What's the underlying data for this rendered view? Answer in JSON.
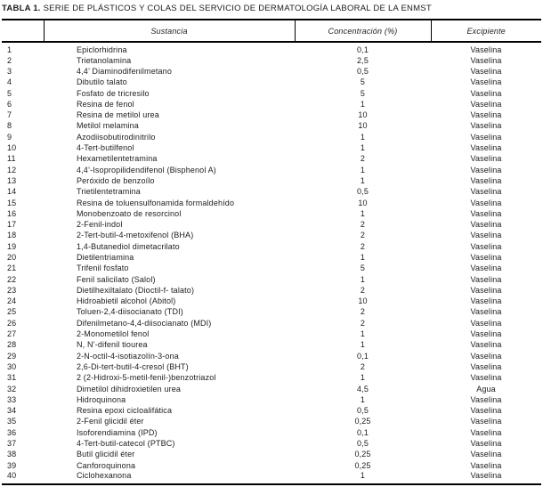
{
  "title": {
    "prefix": "TABLA 1.",
    "rest": " SERIE DE PLÁSTICOS Y COLAS DEL SERVICIO DE DERMATOLOGÍA LABORAL DE LA ENMST"
  },
  "table": {
    "columns": [
      "",
      "Sustancia",
      "Concentración (%)",
      "Excipiente"
    ],
    "rows": [
      [
        "1",
        "Epiclorhidrina",
        "0,1",
        "Vaselina"
      ],
      [
        "2",
        "Trietanolamina",
        "2,5",
        "Vaselina"
      ],
      [
        "3",
        "4,4’ Diaminodifenilmetano",
        "0,5",
        "Vaselina"
      ],
      [
        "4",
        "Dibutilo talato",
        "5",
        "Vaselina"
      ],
      [
        "5",
        "Fosfato de tricresilo",
        "5",
        "Vaselina"
      ],
      [
        "6",
        "Resina de fenol",
        "1",
        "Vaselina"
      ],
      [
        "7",
        "Resina de metilol urea",
        "10",
        "Vaselina"
      ],
      [
        "8",
        "Metilol melamina",
        "10",
        "Vaselina"
      ],
      [
        "9",
        "Azodiisobutirodinitrilo",
        "1",
        "Vaselina"
      ],
      [
        "10",
        "4-Tert-butilfenol",
        "1",
        "Vaselina"
      ],
      [
        "11",
        "Hexametilentetramina",
        "2",
        "Vaselina"
      ],
      [
        "12",
        "4,4’-Isopropilidendifenol (Bisphenol A)",
        "1",
        "Vaselina"
      ],
      [
        "13",
        "Peróxido de benzoílo",
        "1",
        "Vaselina"
      ],
      [
        "14",
        "Trietilentetramina",
        "0,5",
        "Vaselina"
      ],
      [
        "15",
        "Resina de toluensulfonamida formaldehído",
        "10",
        "Vaselina"
      ],
      [
        "16",
        "Monobenzoato de resorcinol",
        "1",
        "Vaselina"
      ],
      [
        "17",
        "2-Fenil-indol",
        "2",
        "Vaselina"
      ],
      [
        "18",
        "2-Tert-butil-4-metoxifenol (BHA)",
        "2",
        "Vaselina"
      ],
      [
        "19",
        "1,4-Butanediol dimetacrilato",
        "2",
        "Vaselina"
      ],
      [
        "20",
        "Dietilentriamina",
        "1",
        "Vaselina"
      ],
      [
        "21",
        "Trifenil fosfato",
        "5",
        "Vaselina"
      ],
      [
        "22",
        "Fenil salicilato (Salol)",
        "1",
        "Vaselina"
      ],
      [
        "23",
        "Dietilhexiltalato (Dioctil-f- talato)",
        "2",
        "Vaselina"
      ],
      [
        "24",
        "Hidroabietil alcohol (Abitol)",
        "10",
        "Vaselina"
      ],
      [
        "25",
        "Toluen-2,4-diisocianato (TDI)",
        "2",
        "Vaselina"
      ],
      [
        "26",
        "Difenilmetano-4,4-diisocianato (MDI)",
        "2",
        "Vaselina"
      ],
      [
        "27",
        "2-Monometilol fenol",
        "1",
        "Vaselina"
      ],
      [
        "28",
        "N, N’-difenil tiourea",
        "1",
        "Vaselina"
      ],
      [
        "29",
        "2-N-octil-4-isotiazolín-3-ona",
        "0,1",
        "Vaselina"
      ],
      [
        "30",
        "2,6-Di-tert-butil-4-cresol (BHT)",
        "2",
        "Vaselina"
      ],
      [
        "31",
        "2 (2-Hidroxi-5-metil-fenil-)benzotriazol",
        "1",
        "Vaselina"
      ],
      [
        "32",
        "Dimetilol dihidroxietilen urea",
        "4,5",
        "Agua"
      ],
      [
        "33",
        "Hidroquinona",
        "1",
        "Vaselina"
      ],
      [
        "34",
        "Resina epoxi cicloalifática",
        "0,5",
        "Vaselina"
      ],
      [
        "35",
        "2-Fenil glicidil éter",
        "0,25",
        "Vaselina"
      ],
      [
        "36",
        "Isoforendiamina (IPD)",
        "0,1",
        "Vaselina"
      ],
      [
        "37",
        "4-Tert-butil-catecol (PTBC)",
        "0,5",
        "Vaselina"
      ],
      [
        "38",
        "Butil glicidil éter",
        "0,25",
        "Vaselina"
      ],
      [
        "39",
        "Canforoquinona",
        "0,25",
        "Vaselina"
      ],
      [
        "40",
        "Ciclohexanona",
        "1",
        "Vaselina"
      ]
    ]
  }
}
